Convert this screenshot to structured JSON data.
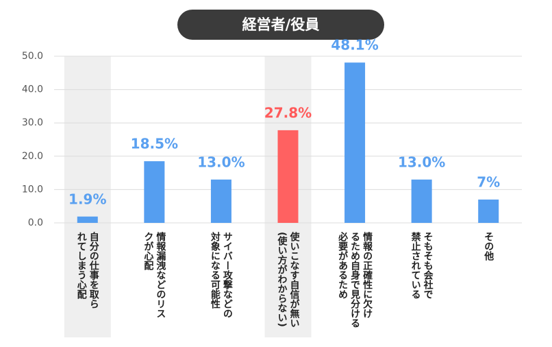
{
  "chart_data": {
    "type": "bar",
    "title": "経営者/役員",
    "categories": [
      "自分の仕事を取ら\nれてしまう心配",
      "情報漏洩などのリス\nクが心配",
      "サイバー攻撃などの\n対象になる可能性",
      "使いこなす自信が無い\n(使い方がわからない)",
      "情報の正確性に欠け\nるため自身で見分ける\n必要があるため",
      "そもそも会社で\n禁止されている",
      "その他"
    ],
    "values": [
      1.9,
      18.5,
      13,
      27.8,
      48.1,
      13,
      7
    ],
    "value_labels": [
      "1.9%",
      "18.5%",
      "13.0%",
      "27.8%",
      "48.1%",
      "13.0%",
      "7%"
    ],
    "colors": [
      "#559ef0",
      "#559ef0",
      "#559ef0",
      "#ff6161",
      "#559ef0",
      "#559ef0",
      "#559ef0"
    ],
    "label_colors": [
      "#5aa0f0",
      "#5aa0f0",
      "#5aa0f0",
      "#ff5a5a",
      "#5aa0f0",
      "#5aa0f0",
      "#5aa0f0"
    ],
    "highlighted_categories": [
      0,
      3
    ],
    "ylim": [
      0,
      50
    ],
    "yticks": [
      {
        "value": 0,
        "label": "0.0"
      },
      {
        "value": 10,
        "label": "10.0"
      },
      {
        "value": 20,
        "label": "20.0"
      },
      {
        "value": 30,
        "label": "30.0"
      },
      {
        "value": 40,
        "label": "40.0"
      },
      {
        "value": 50,
        "label": "50.0"
      }
    ],
    "grid": true
  }
}
